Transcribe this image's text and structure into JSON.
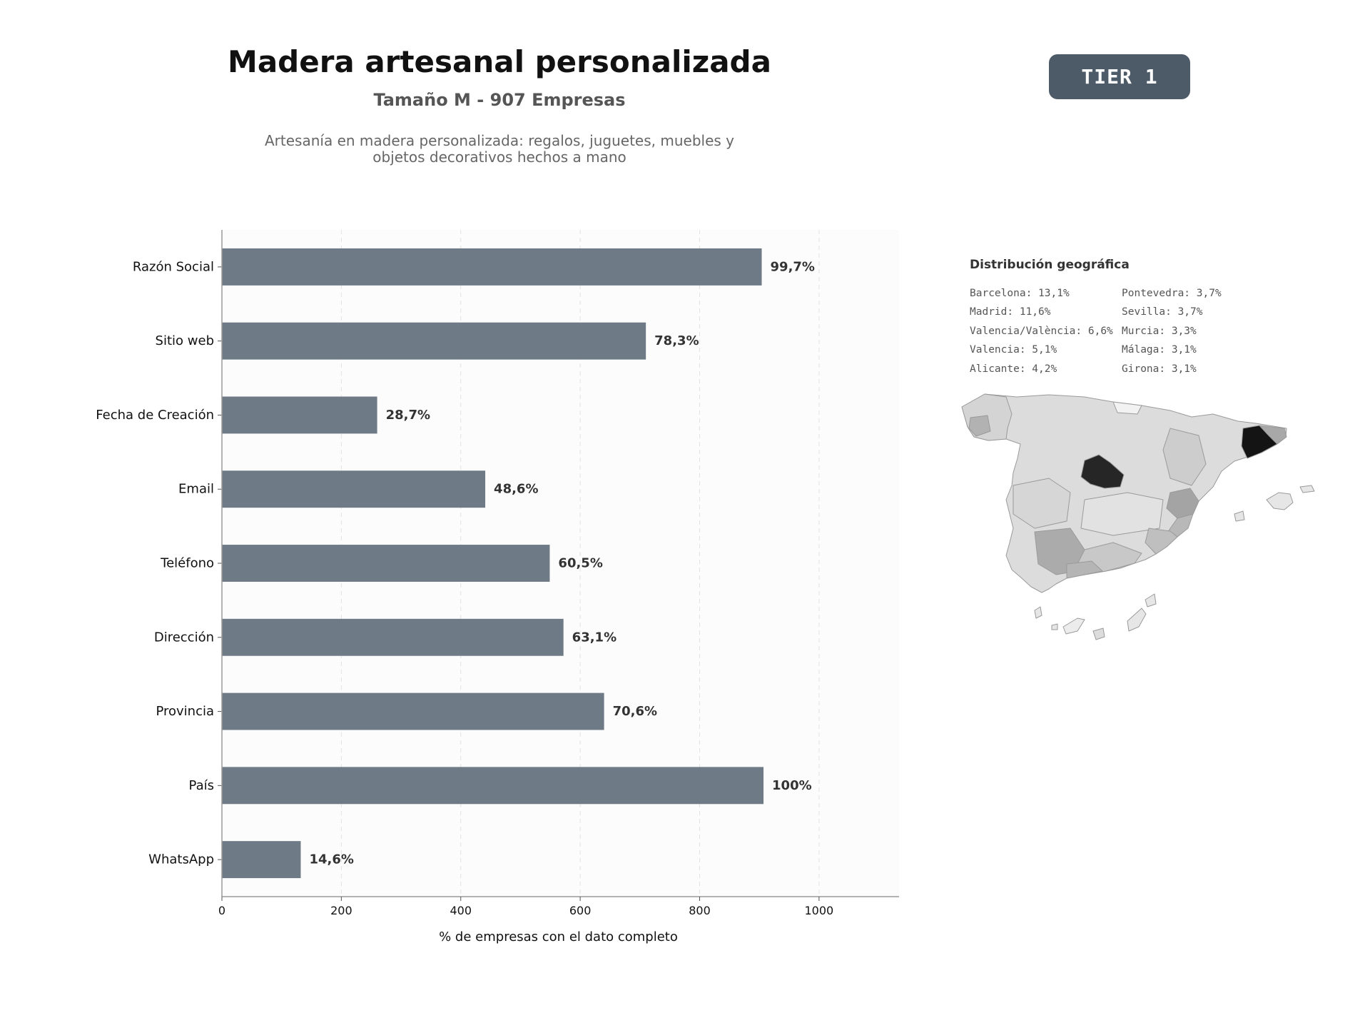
{
  "header": {
    "title": "Madera artesanal personalizada",
    "subtitle": "Tamaño M - 907 Empresas",
    "description": "Artesanía en madera personalizada: regalos, juguetes, muebles y objetos decorativos hechos a mano",
    "tier_label": "TIER 1"
  },
  "chart_data": {
    "type": "bar",
    "orientation": "horizontal",
    "categories": [
      "Razón Social",
      "Sitio web",
      "Fecha de Creación",
      "Email",
      "Teléfono",
      "Dirección",
      "Provincia",
      "País",
      "WhatsApp"
    ],
    "values": [
      904,
      710,
      260,
      441,
      549,
      572,
      640,
      907,
      132
    ],
    "data_labels": [
      "99,7%",
      "78,3%",
      "28,7%",
      "48,6%",
      "60,5%",
      "63,1%",
      "70,6%",
      "100%",
      "14,6%"
    ],
    "xlabel": "% de empresas con el dato completo",
    "ylabel": "",
    "xlim": [
      0,
      1134
    ],
    "xticks": [
      0,
      200,
      400,
      600,
      800,
      1000
    ],
    "grid": "vertical dashed",
    "bar_color": "#6e7a85"
  },
  "geo": {
    "title": "Distribución geográfica",
    "left_column": [
      "Barcelona: 13,1%",
      "Madrid: 11,6%",
      "Valencia/València: 6,6%",
      "Valencia: 5,1%",
      "Alicante: 4,2%"
    ],
    "right_column": [
      "Pontevedra: 3,7%",
      "Sevilla: 3,7%",
      "Murcia: 3,3%",
      "Málaga: 3,1%",
      "Girona: 3,1%"
    ]
  }
}
